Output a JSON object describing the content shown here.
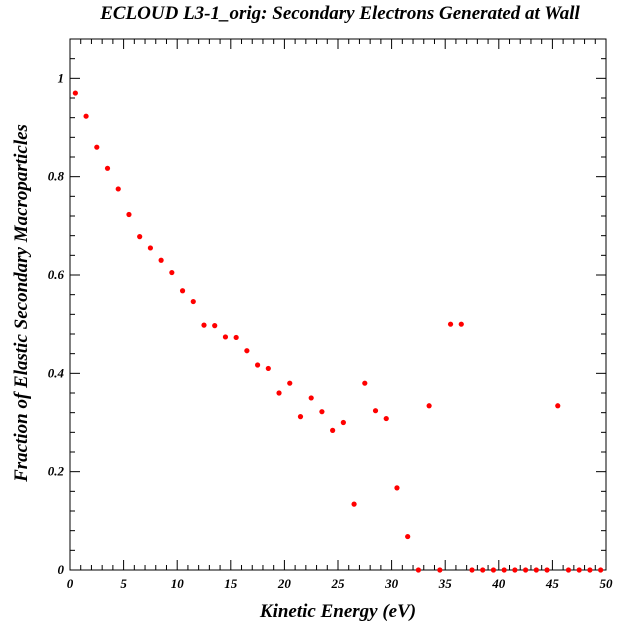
{
  "chart_data": {
    "type": "scatter",
    "title": "ECLOUD L3-1_orig: Secondary Electrons Generated at Wall",
    "xlabel": "Kinetic Energy (eV)",
    "ylabel": "Fraction of Elastic Secondary Macroparticles",
    "xlim": [
      0,
      50
    ],
    "ylim": [
      0,
      1.08
    ],
    "grid": false,
    "marker_color": "#ff0000",
    "x_ticks": [
      0,
      5,
      10,
      15,
      20,
      25,
      30,
      35,
      40,
      45,
      50
    ],
    "x_tick_labels": [
      "0",
      "5",
      "10",
      "15",
      "20",
      "25",
      "30",
      "35",
      "40",
      "45",
      "50"
    ],
    "y_ticks": [
      0,
      0.2,
      0.4,
      0.6,
      0.8,
      1
    ],
    "y_tick_labels": [
      "0",
      "0.2",
      "0.4",
      "0.6",
      "0.8",
      "1"
    ],
    "series": [
      {
        "x": [
          0.5,
          1.5,
          2.5,
          3.5,
          4.5,
          5.5,
          6.5,
          7.5,
          8.5,
          9.5,
          10.5,
          11.5,
          12.5,
          13.5,
          14.5,
          15.5,
          16.5,
          17.5,
          18.5,
          19.5,
          20.5,
          21.5,
          22.5,
          23.5,
          24.5,
          25.5,
          26.5,
          27.5,
          28.5,
          29.5,
          30.5,
          31.5,
          32.5,
          33.5,
          34.5,
          35.5,
          36.5,
          37.5,
          38.5,
          39.5,
          40.5,
          41.5,
          42.5,
          43.5,
          44.5,
          45.5,
          46.5,
          47.5,
          48.5,
          49.5
        ],
        "y": [
          0.97,
          0.923,
          0.86,
          0.817,
          0.775,
          0.723,
          0.678,
          0.655,
          0.63,
          0.605,
          0.568,
          0.546,
          0.498,
          0.497,
          0.474,
          0.473,
          0.446,
          0.417,
          0.41,
          0.36,
          0.38,
          0.312,
          0.35,
          0.322,
          0.284,
          0.3,
          0.134,
          0.38,
          0.324,
          0.308,
          0.167,
          0.068,
          0.0,
          0.334,
          0.0,
          0.5,
          0.5,
          0.0,
          0.0,
          0.0,
          0.0,
          0.0,
          0.0,
          0.0,
          0.0,
          0.334,
          0.0,
          0.0,
          0.0,
          0.0
        ]
      }
    ]
  }
}
